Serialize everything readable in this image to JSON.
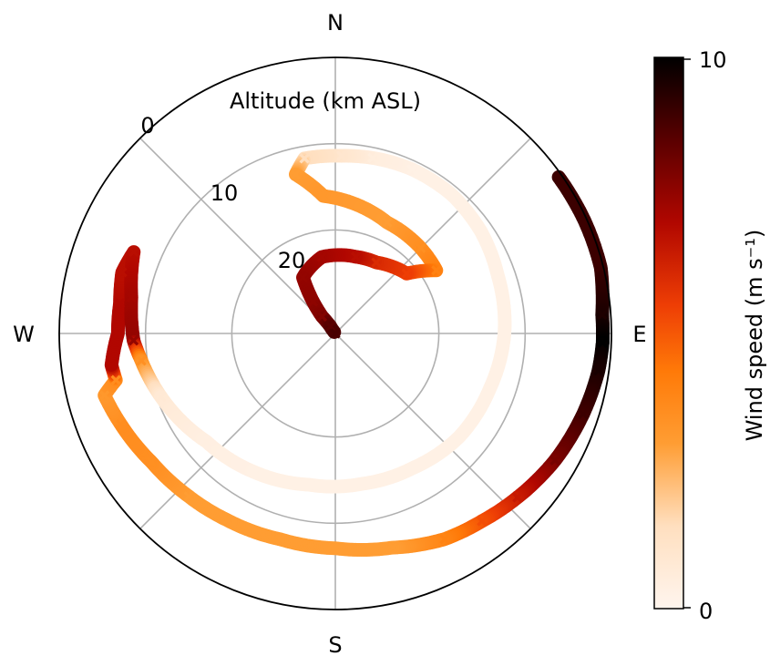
{
  "chart_data": {
    "type": "polar",
    "radial_label": "Altitude (km ASL)",
    "compass_labels": [
      "N",
      "E",
      "S",
      "W"
    ],
    "radial_ticks": [
      0,
      10,
      20
    ],
    "radial_axis": {
      "outer_altitude_km": 0,
      "center_altitude_km": 32,
      "inverted": true
    },
    "grid": true,
    "colorbar": {
      "label": "Wind speed (m s⁻¹)",
      "min": 0,
      "max": 10,
      "tick_labels": [
        "0",
        "10"
      ],
      "colormap": "gist_heat_r"
    },
    "series": [
      {
        "marker": "x",
        "columns": [
          "direction_deg",
          "altitude_km",
          "wind_speed_m_s"
        ],
        "points": [
          [
            55,
            0.4,
            9.0
          ],
          [
            66,
            0.3,
            9.0
          ],
          [
            76,
            0.3,
            9.0
          ],
          [
            86,
            1.0,
            9.5
          ],
          [
            92,
            1.0,
            10.0
          ],
          [
            98,
            1.2,
            9.6
          ],
          [
            108,
            1.8,
            9.0
          ],
          [
            120,
            2.6,
            8.0
          ],
          [
            132,
            3.6,
            6.5
          ],
          [
            142,
            4.4,
            5.2
          ],
          [
            152,
            5.0,
            4.0
          ],
          [
            165,
            6.3,
            3.0
          ],
          [
            180,
            7.1,
            3.0
          ],
          [
            195,
            7.3,
            3.0
          ],
          [
            210,
            7.0,
            3.0
          ],
          [
            222,
            6.6,
            3.0
          ],
          [
            235,
            6.0,
            3.5
          ],
          [
            247,
            5.0,
            3.6
          ],
          [
            255,
            4.3,
            3.2
          ],
          [
            258,
            6.0,
            3.6
          ],
          [
            262,
            5.8,
            7.0
          ],
          [
            270,
            6.8,
            7.0
          ],
          [
            278,
            6.8,
            7.0
          ],
          [
            286,
            6.3,
            6.8
          ],
          [
            292,
            6.8,
            6.8
          ],
          [
            280,
            8.0,
            7.2
          ],
          [
            268,
            8.6,
            7.5
          ],
          [
            262,
            9.3,
            3.5
          ],
          [
            250,
            10.5,
            0.8
          ],
          [
            230,
            12.5,
            0.4
          ],
          [
            210,
            13.4,
            0.3
          ],
          [
            190,
            14.2,
            0.3
          ],
          [
            170,
            14.3,
            0.3
          ],
          [
            150,
            14.0,
            0.3
          ],
          [
            130,
            13.3,
            0.3
          ],
          [
            110,
            13.0,
            0.3
          ],
          [
            90,
            12.4,
            0.3
          ],
          [
            70,
            12.0,
            0.3
          ],
          [
            55,
            11.4,
            0.3
          ],
          [
            40,
            11.0,
            0.3
          ],
          [
            25,
            11.0,
            0.3
          ],
          [
            12,
            11.2,
            0.5
          ],
          [
            2,
            11.4,
            1.0
          ],
          [
            350,
            11.4,
            1.5
          ],
          [
            346,
            13.0,
            3.0
          ],
          [
            355,
            16.0,
            3.2
          ],
          [
            25,
            17.8,
            3.0
          ],
          [
            45,
            18.0,
            3.5
          ],
          [
            58,
            18.2,
            4.0
          ],
          [
            50,
            21.2,
            5.5
          ],
          [
            30,
            22.5,
            6.0
          ],
          [
            15,
            22.8,
            6.8
          ],
          [
            350,
            23.0,
            7.2
          ],
          [
            330,
            24.5,
            7.5
          ],
          [
            325,
            27.5,
            7.6
          ],
          [
            322,
            29.5,
            7.8
          ],
          [
            325,
            31.0,
            8.5
          ],
          [
            320,
            32.0,
            8.8
          ]
        ]
      }
    ]
  }
}
